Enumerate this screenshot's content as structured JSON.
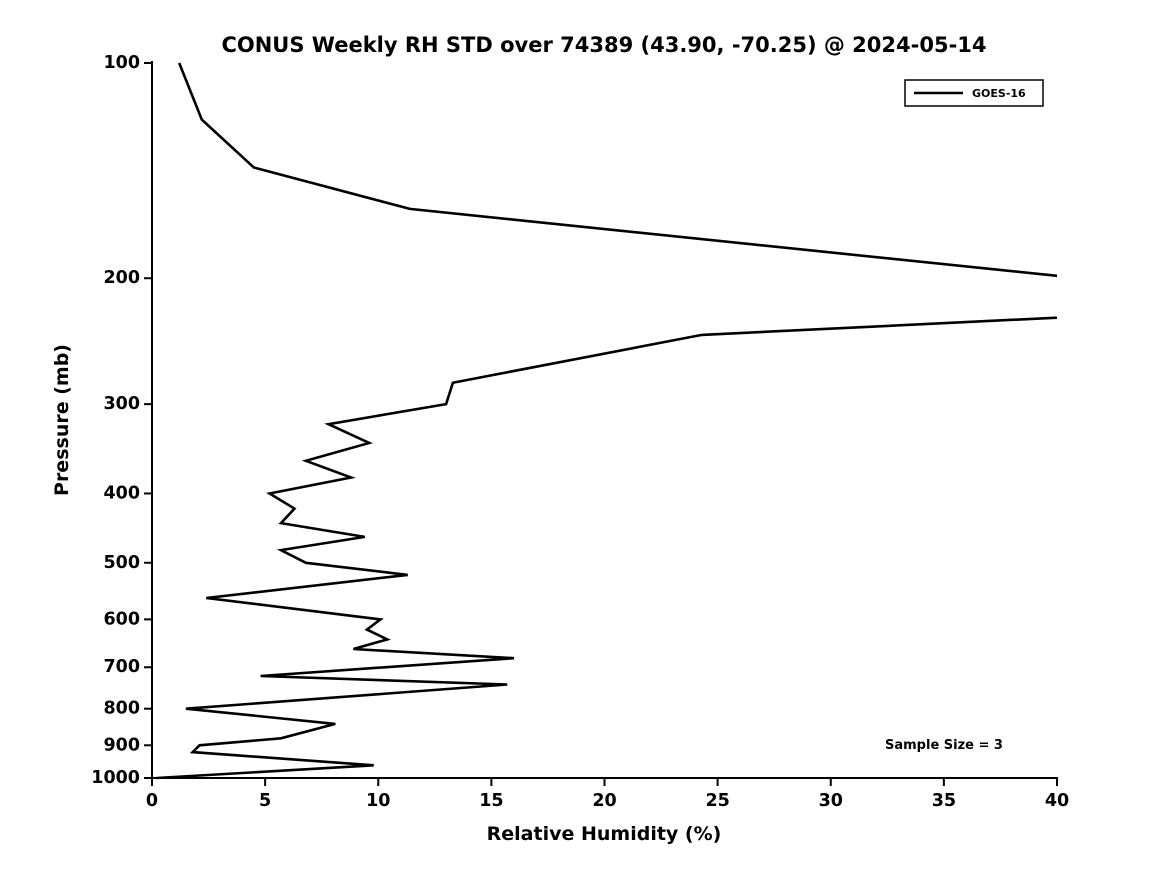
{
  "title": "CONUS Weekly RH STD over 74389 (43.90, -70.25) @ 2024-05-14",
  "annotation": "Sample Size = 3",
  "legend": {
    "series_label": "GOES-16"
  },
  "colors": {
    "line": "#000000",
    "axis": "#000000",
    "background": "#ffffff"
  },
  "chart_data": {
    "type": "line",
    "title": "CONUS Weekly RH STD over 74389 (43.90, -70.25) @ 2024-05-14",
    "xlabel": "Relative Humidity (%)",
    "ylabel": "Pressure (mb)",
    "xlim": [
      0,
      40
    ],
    "ylim": [
      100,
      1000
    ],
    "y_scale": "log",
    "y_inverted": true,
    "grid": false,
    "x_ticks": [
      0,
      5,
      10,
      15,
      20,
      25,
      30,
      35,
      40
    ],
    "y_ticks": [
      100,
      200,
      300,
      400,
      500,
      600,
      700,
      800,
      900,
      1000
    ],
    "legend_position": "top-right",
    "series": [
      {
        "name": "GOES-16",
        "color": "#000000",
        "x_name": "rh_std_percent",
        "y_name": "pressure_mb",
        "points": [
          [
            1.2,
            100
          ],
          [
            2.2,
            120
          ],
          [
            4.5,
            140
          ],
          [
            11.4,
            160
          ],
          [
            41,
            200
          ],
          [
            49,
            220
          ],
          [
            24.3,
            240
          ],
          [
            13.3,
            280
          ],
          [
            13,
            300
          ],
          [
            7.8,
            320
          ],
          [
            9.6,
            340
          ],
          [
            6.8,
            360
          ],
          [
            8.8,
            380
          ],
          [
            5.2,
            400
          ],
          [
            6.3,
            420
          ],
          [
            5.7,
            440
          ],
          [
            9.4,
            460
          ],
          [
            5.7,
            480
          ],
          [
            6.8,
            500
          ],
          [
            11.3,
            520
          ],
          [
            2.4,
            560
          ],
          [
            10.1,
            600
          ],
          [
            9.5,
            620
          ],
          [
            10.4,
            640
          ],
          [
            8.9,
            660
          ],
          [
            16,
            680
          ],
          [
            4.8,
            720
          ],
          [
            15.7,
            740
          ],
          [
            1.5,
            800
          ],
          [
            8.1,
            840
          ],
          [
            5.7,
            880
          ],
          [
            2.1,
            900
          ],
          [
            1.8,
            920
          ],
          [
            9.8,
            960
          ],
          [
            0.2,
            1000
          ]
        ]
      }
    ]
  }
}
